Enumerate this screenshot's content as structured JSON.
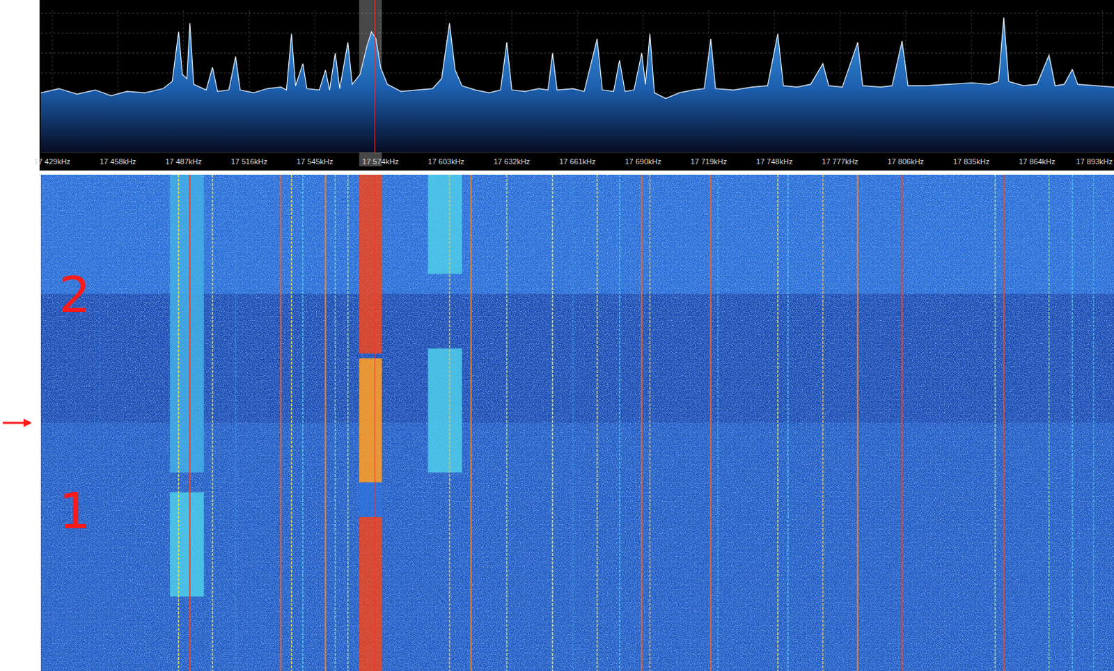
{
  "chart_data": {
    "type": "waterfall",
    "xlim": [
      17424,
      17898
    ],
    "xticks": [
      {
        "value": 17429,
        "label": "17 429kHz"
      },
      {
        "value": 17458,
        "label": "17 458kHz"
      },
      {
        "value": 17487,
        "label": "17 487kHz"
      },
      {
        "value": 17516,
        "label": "17 516kHz"
      },
      {
        "value": 17545,
        "label": "17 545kHz"
      },
      {
        "value": 17574,
        "label": "17 574kHz"
      },
      {
        "value": 17603,
        "label": "17 603kHz"
      },
      {
        "value": 17632,
        "label": "17 632kHz"
      },
      {
        "value": 17661,
        "label": "17 661kHz"
      },
      {
        "value": 17690,
        "label": "17 690kHz"
      },
      {
        "value": 17719,
        "label": "17 719kHz"
      },
      {
        "value": 17748,
        "label": "17 748kHz"
      },
      {
        "value": 17777,
        "label": "17 777kHz"
      },
      {
        "value": 17806,
        "label": "17 806kHz"
      },
      {
        "value": 17835,
        "label": "17 835kHz"
      },
      {
        "value": 17864,
        "label": "17 864kHz"
      },
      {
        "value": 17893,
        "label": "17 893kHz"
      }
    ],
    "ylim": [
      0,
      100
    ],
    "yticks": [
      14,
      28,
      42,
      56,
      70,
      84,
      98
    ],
    "grid": true,
    "tick_labels": "x",
    "spectrum": {
      "color": "#e8f2ff",
      "x": [
        17424,
        17432,
        17440,
        17448,
        17455,
        17462,
        17470,
        17478,
        17482,
        17484.8,
        17486.5,
        17488.5,
        17489.8,
        17491.5,
        17497,
        17499.8,
        17502,
        17507,
        17510,
        17512,
        17518,
        17524,
        17530,
        17532.5,
        17534.7,
        17536.5,
        17539.7,
        17541.5,
        17547,
        17549.7,
        17551.5,
        17554,
        17556,
        17559.6,
        17561.5,
        17565,
        17568,
        17570,
        17572,
        17574,
        17577,
        17583,
        17590,
        17597,
        17601,
        17604.5,
        17607,
        17610,
        17616,
        17622,
        17627,
        17629.8,
        17632,
        17638,
        17644,
        17648,
        17650,
        17652,
        17659,
        17664,
        17669.7,
        17672,
        17677,
        17679.6,
        17682,
        17686,
        17689.4,
        17691,
        17693,
        17695,
        17700,
        17706,
        17712,
        17717,
        17719.9,
        17722,
        17730,
        17738,
        17745,
        17749.5,
        17752,
        17758,
        17764,
        17769.4,
        17772,
        17778,
        17784.8,
        17787,
        17795,
        17800,
        17804.4,
        17807,
        17815,
        17825,
        17835,
        17843,
        17847,
        17849.3,
        17851.5,
        17858,
        17864,
        17869.3,
        17872,
        17876,
        17879.6,
        17882,
        17890,
        17898
      ],
      "values": [
        42,
        45,
        41,
        44,
        40,
        43,
        42,
        45,
        50,
        85,
        55,
        52,
        91,
        48,
        44,
        60,
        43,
        44,
        67.5,
        44,
        42,
        45,
        46,
        44,
        83.5,
        47,
        62.5,
        45,
        44,
        58,
        44,
        70,
        45,
        77.5,
        48,
        55,
        75,
        85,
        80,
        60,
        48,
        43,
        44,
        45,
        52,
        91,
        58,
        47,
        44,
        42,
        44,
        77.5,
        44,
        43,
        45,
        44,
        70,
        44,
        45,
        43,
        80,
        44,
        43,
        65,
        43,
        44,
        70,
        48,
        83.5,
        42,
        38,
        42,
        44,
        45,
        80,
        45,
        44,
        46,
        47,
        83.5,
        47,
        46,
        48,
        62.5,
        47,
        46,
        77.5,
        47,
        46,
        47,
        78.5,
        47,
        47,
        48,
        49,
        48,
        50,
        95,
        50,
        47,
        48,
        68.5,
        47,
        48,
        58.5,
        48,
        47,
        46
      ]
    },
    "tuned": {
      "x0": 17564.6,
      "x1": 17574.6,
      "center": 17571.5
    },
    "waterfall": {
      "tlim": [
        0,
        100
      ],
      "background": [
        {
          "t0": 0,
          "t1": 24,
          "level": 0.3
        },
        {
          "t0": 24,
          "t1": 50,
          "level": 0.18
        },
        {
          "t0": 50,
          "t1": 100,
          "level": 0.24
        }
      ],
      "signals": [
        {
          "x": 17450,
          "level": 0.3
        },
        {
          "x": 17484.8,
          "level": 0.6
        },
        {
          "x": 17489.8,
          "level": 0.95
        },
        {
          "x": 17499.8,
          "level": 0.6
        },
        {
          "x": 17510,
          "level": 0.35
        },
        {
          "x": 17530,
          "level": 0.9
        },
        {
          "x": 17534.7,
          "level": 0.6
        },
        {
          "x": 17539.7,
          "level": 0.45
        },
        {
          "x": 17549.7,
          "level": 0.85
        },
        {
          "x": 17554,
          "level": 0.5
        },
        {
          "x": 17559.6,
          "level": 0.55
        },
        {
          "x": 17604.5,
          "level": 0.7
        },
        {
          "x": 17614,
          "level": 0.85
        },
        {
          "x": 17629.8,
          "level": 0.55
        },
        {
          "x": 17650,
          "level": 0.6
        },
        {
          "x": 17659,
          "level": 0.35
        },
        {
          "x": 17669.7,
          "level": 0.6
        },
        {
          "x": 17679.6,
          "level": 0.45
        },
        {
          "x": 17689.4,
          "level": 0.9
        },
        {
          "x": 17693,
          "level": 0.7
        },
        {
          "x": 17719.9,
          "level": 0.9
        },
        {
          "x": 17723,
          "level": 0.4
        },
        {
          "x": 17749.5,
          "level": 0.6
        },
        {
          "x": 17754,
          "level": 0.45
        },
        {
          "x": 17769.4,
          "level": 0.7
        },
        {
          "x": 17784.8,
          "level": 0.85
        },
        {
          "x": 17804.4,
          "level": 0.95
        },
        {
          "x": 17845.5,
          "level": 0.55
        },
        {
          "x": 17849.3,
          "level": 0.95
        },
        {
          "x": 17869.3,
          "level": 0.5
        },
        {
          "x": 17879.6,
          "level": 0.45
        },
        {
          "x": 17889,
          "level": 0.4
        }
      ],
      "bands": [
        {
          "x0": 17564.6,
          "x1": 17574.6,
          "segments": [
            {
              "t0": 0,
              "t1": 36,
              "level": 0.95
            },
            {
              "t0": 37,
              "t1": 62,
              "level": 0.8
            },
            {
              "t0": 62,
              "t1": 69,
              "level": 0.3
            },
            {
              "t0": 69,
              "t1": 100,
              "level": 0.95
            }
          ]
        },
        {
          "x0": 17481,
          "x1": 17496,
          "segments": [
            {
              "t0": 0,
              "t1": 60,
              "level": 0.4
            },
            {
              "t0": 64,
              "t1": 85,
              "level": 0.45
            }
          ]
        },
        {
          "x0": 17595,
          "x1": 17610,
          "segments": [
            {
              "t0": 0,
              "t1": 20,
              "level": 0.45
            },
            {
              "t0": 35,
              "t1": 60,
              "level": 0.45
            }
          ]
        }
      ]
    },
    "annotations": [
      "2",
      "1"
    ]
  }
}
